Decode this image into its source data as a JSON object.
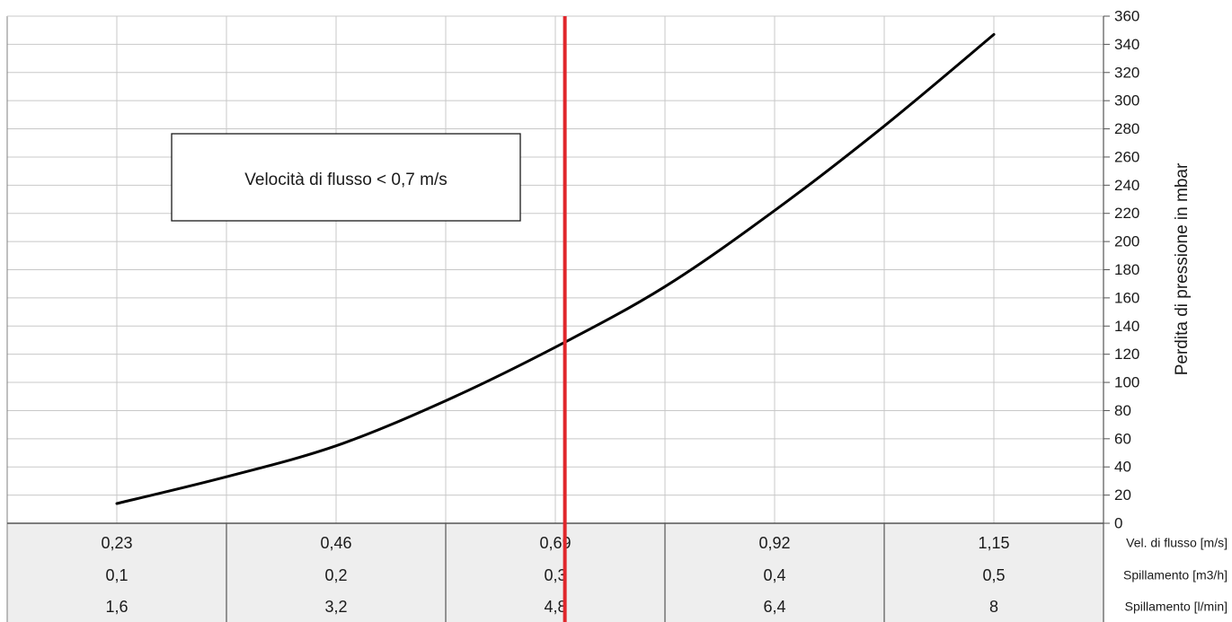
{
  "chart_data": {
    "type": "line",
    "title": "",
    "ylabel": "Perdita di pressione in mbar",
    "ylim": [
      0,
      360
    ],
    "y_ticks": [
      0,
      20,
      40,
      60,
      80,
      100,
      120,
      140,
      160,
      180,
      200,
      220,
      240,
      260,
      280,
      300,
      320,
      340,
      360
    ],
    "x_rows": [
      {
        "label": "Vel. di flusso [m/s]",
        "values": [
          "0,23",
          "0,46",
          "0,69",
          "0,92",
          "1,15"
        ]
      },
      {
        "label": "Spillamento [m3/h]",
        "values": [
          "0,1",
          "0,2",
          "0,3",
          "0,4",
          "0,5"
        ]
      },
      {
        "label": "Spillamento [l/min]",
        "values": [
          "1,6",
          "3,2",
          "4,8",
          "6,4",
          "8"
        ]
      }
    ],
    "x": [
      0.23,
      0.46,
      0.69,
      0.92,
      1.15
    ],
    "series": [
      {
        "color": "#000000",
        "points": [
          [
            0.23,
            14
          ],
          [
            0.345,
            33
          ],
          [
            0.46,
            55
          ],
          [
            0.575,
            87
          ],
          [
            0.69,
            125
          ],
          [
            0.805,
            168
          ],
          [
            0.92,
            222
          ],
          [
            1.035,
            282
          ],
          [
            1.15,
            347
          ]
        ]
      }
    ],
    "threshold": {
      "x": 0.7,
      "color": "#e0262b"
    },
    "annotation": {
      "text": "Velocità di flusso < 0,7 m/s"
    },
    "grid": true
  }
}
